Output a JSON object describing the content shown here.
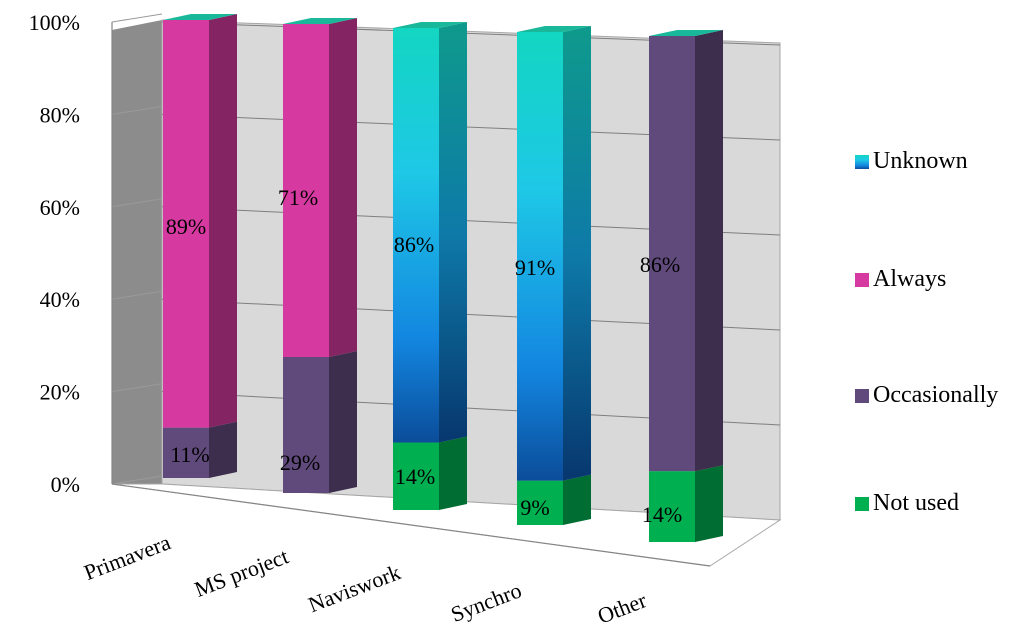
{
  "chart_data": {
    "type": "bar",
    "stacked": true,
    "percent_stacked": true,
    "three_d": true,
    "categories": [
      "Primavera",
      "MS project",
      "Naviswork",
      "Synchro",
      "Other"
    ],
    "series": [
      {
        "name": "Not used",
        "values": [
          0,
          0,
          14,
          9,
          14
        ],
        "color": "#00b050",
        "labels": [
          "",
          "",
          "14%",
          "9%",
          "14%"
        ]
      },
      {
        "name": "Occasionally",
        "values": [
          11,
          29,
          0,
          0,
          86
        ],
        "color": "#604a7b",
        "labels": [
          "11%",
          "29%",
          "",
          "",
          "86%"
        ]
      },
      {
        "name": "Always",
        "values": [
          89,
          71,
          0,
          0,
          0
        ],
        "color": "#d63aa0",
        "labels": [
          "89%",
          "71%",
          "",
          "",
          ""
        ]
      },
      {
        "name": "Unknown",
        "values": [
          0,
          0,
          86,
          91,
          0
        ],
        "color": "#1ca0e0",
        "labels": [
          "",
          "",
          "86%",
          "91%",
          ""
        ]
      }
    ],
    "y_ticks": [
      "0%",
      "20%",
      "40%",
      "60%",
      "80%",
      "100%"
    ],
    "ylim": [
      0,
      100
    ],
    "grid": true,
    "legend_position": "right",
    "legend_order": [
      "Unknown",
      "Always",
      "Occasionally",
      "Not used"
    ]
  }
}
